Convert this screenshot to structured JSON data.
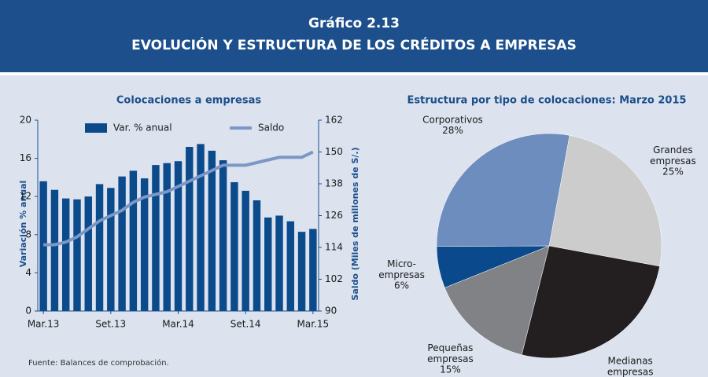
{
  "header": {
    "title": "Gráfico 2.13",
    "subtitle": "EVOLUCIÓN Y ESTRUCTURA DE LOS CRÉDITOS A EMPRESAS"
  },
  "chart_data": [
    {
      "type": "bar_line",
      "title": "Colocaciones a empresas",
      "y_label": "Variación % anual",
      "y2_label": "Saldo (Miles de millones de S/.)",
      "categories": [
        "Mar.13",
        null,
        null,
        null,
        null,
        null,
        "Set.13",
        null,
        null,
        null,
        null,
        null,
        "Mar.14",
        null,
        null,
        null,
        null,
        null,
        "Set.14",
        null,
        null,
        null,
        null,
        null,
        "Mar.15"
      ],
      "series": [
        {
          "name": "Var. % anual",
          "color": "#0b4a8b",
          "kind": "bar",
          "values": [
            13.6,
            12.7,
            11.8,
            11.7,
            12.0,
            13.3,
            12.9,
            14.1,
            14.7,
            13.9,
            15.3,
            15.5,
            15.7,
            17.2,
            17.5,
            16.8,
            15.8,
            13.5,
            12.6,
            11.6,
            9.8,
            10.0,
            9.4,
            8.3,
            8.6
          ]
        },
        {
          "name": "Saldo",
          "color": "#7b97c7",
          "kind": "line",
          "axis": "y2",
          "values": [
            115,
            115,
            116,
            118,
            121,
            124,
            126,
            128,
            131,
            133,
            134,
            135,
            137,
            139,
            141,
            143,
            145,
            145,
            145,
            146,
            147,
            148,
            148,
            148,
            150
          ]
        }
      ],
      "ylim": [
        0,
        20
      ],
      "yticks": [
        0,
        4,
        8,
        12,
        16,
        20
      ],
      "y2lim": [
        90,
        162
      ],
      "y2ticks": [
        90,
        102,
        114,
        126,
        138,
        150,
        162
      ]
    },
    {
      "type": "pie",
      "title": "Estructura por tipo de colocaciones: Marzo 2015",
      "categories": [
        "Grandes empresas",
        "Medianas empresas",
        "Pequeñas empresas",
        "Micro- empresas",
        "Corporativos"
      ],
      "values": [
        25,
        26,
        15,
        6,
        28
      ],
      "value_labels": [
        "25%",
        "26%",
        "15%",
        "6%",
        "28%"
      ],
      "colors": [
        "#cccccc",
        "#231f20",
        "#808285",
        "#0a4a8c",
        "#6d8dbf"
      ]
    }
  ],
  "footer": {
    "source": "Fuente: Balances de comprobación."
  }
}
